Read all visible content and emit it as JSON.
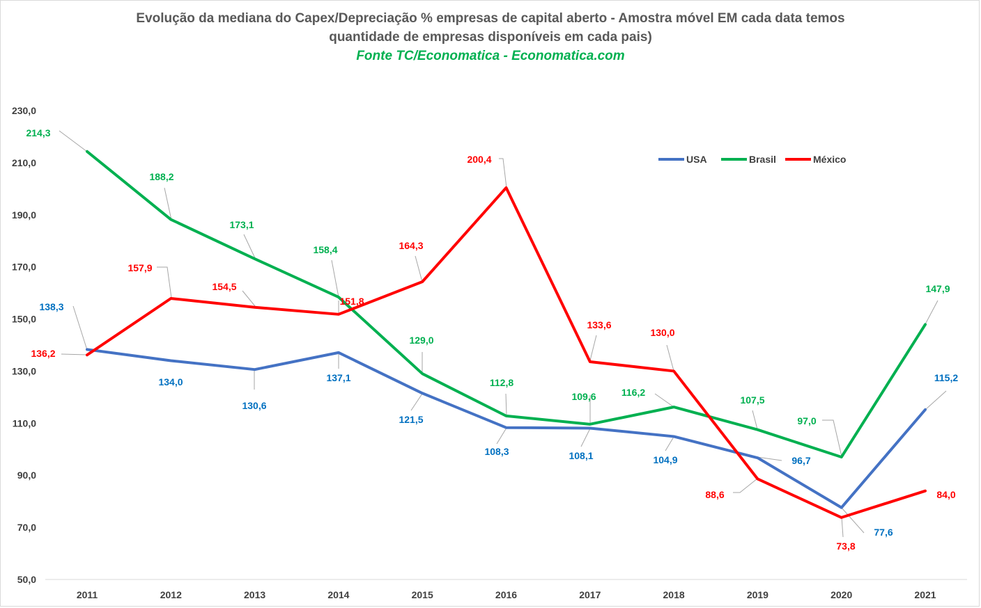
{
  "title_line1": "Evolução da mediana do Capex/Depreciação % empresas de capital aberto - Amostra móvel EM cada data temos",
  "title_line2": "quantidade de empresas disponíveis em cada pais)",
  "source": "Fonte TC/Economatica - Economatica.com",
  "source_color": "#00b050",
  "chart_data": {
    "type": "line",
    "title": "Evolução da mediana do Capex/Depreciação % empresas de capital aberto - Amostra móvel EM cada data temos quantidade de empresas disponíveis em cada pais)",
    "x": [
      "2011",
      "2012",
      "2013",
      "2014",
      "2015",
      "2016",
      "2017",
      "2018",
      "2019",
      "2020",
      "2021"
    ],
    "ylim": [
      50,
      230
    ],
    "yticks": [
      "50,0",
      "70,0",
      "90,0",
      "110,0",
      "130,0",
      "150,0",
      "170,0",
      "190,0",
      "210,0",
      "230,0"
    ],
    "grid": false,
    "legend_position": "top-right",
    "series": [
      {
        "name": "USA",
        "color": "#4472c4",
        "label_color": "#0070c0",
        "values": [
          138.3,
          134.0,
          130.6,
          137.1,
          121.5,
          108.3,
          108.1,
          104.9,
          96.7,
          77.6,
          115.2
        ],
        "labels": [
          "138,3",
          "134,0",
          "130,6",
          "137,1",
          "121,5",
          "108,3",
          "108,1",
          "104,9",
          "96,7",
          "77,6",
          "115,2"
        ]
      },
      {
        "name": "Brasil",
        "color": "#00b050",
        "label_color": "#00b050",
        "values": [
          214.3,
          188.2,
          173.1,
          158.4,
          129.0,
          112.8,
          109.6,
          116.2,
          107.5,
          97.0,
          147.9
        ],
        "labels": [
          "214,3",
          "188,2",
          "173,1",
          "158,4",
          "129,0",
          "112,8",
          "109,6",
          "116,2",
          "107,5",
          "97,0",
          "147,9"
        ]
      },
      {
        "name": "México",
        "color": "#ff0000",
        "label_color": "#ff0000",
        "values": [
          136.2,
          157.9,
          154.5,
          151.8,
          164.3,
          200.4,
          133.6,
          130.0,
          88.6,
          73.8,
          84.0
        ],
        "labels": [
          "136,2",
          "157,9",
          "154,5",
          "151,8",
          "164,3",
          "200,4",
          "133,6",
          "130,0",
          "88,6",
          "73,8",
          "84,0"
        ]
      }
    ]
  }
}
